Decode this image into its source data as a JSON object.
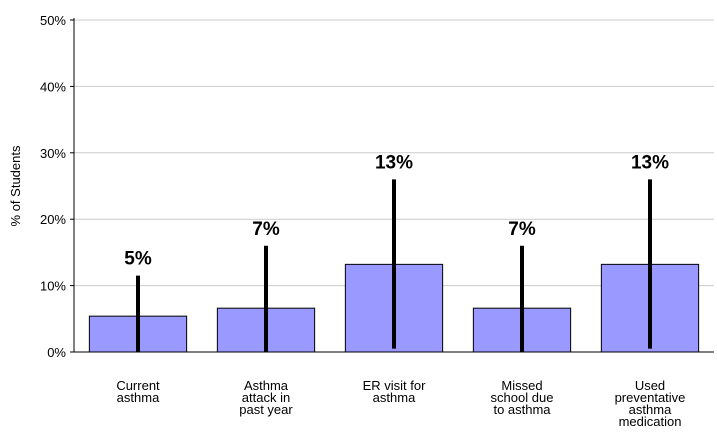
{
  "chart_data": {
    "type": "bar",
    "title": "",
    "xlabel": "",
    "ylabel": "% of Students",
    "ylim": [
      0,
      50
    ],
    "yticks": [
      0,
      10,
      20,
      30,
      40,
      50
    ],
    "ytick_labels": [
      "0%",
      "10%",
      "20%",
      "30%",
      "40%",
      "50%"
    ],
    "grid": true,
    "categories": [
      [
        "Current",
        "asthma"
      ],
      [
        "Asthma",
        "attack in",
        "past year"
      ],
      [
        "ER visit for",
        "asthma"
      ],
      [
        "Missed",
        "school due",
        "to asthma"
      ],
      [
        "Used",
        "preventative",
        "asthma",
        "medication"
      ]
    ],
    "values": [
      5.4,
      6.6,
      13.2,
      6.6,
      13.2
    ],
    "error_upper": [
      11.5,
      16.0,
      26.0,
      16.0,
      26.0
    ],
    "error_lower": [
      0,
      0,
      0.5,
      0,
      0.5
    ],
    "data_labels": [
      "5%",
      "7%",
      "13%",
      "7%",
      "13%"
    ],
    "colors": {
      "bar_fill": "#9999ff",
      "bar_stroke": "#000000",
      "error_bar": "#000000",
      "grid": "#cccccc"
    }
  }
}
